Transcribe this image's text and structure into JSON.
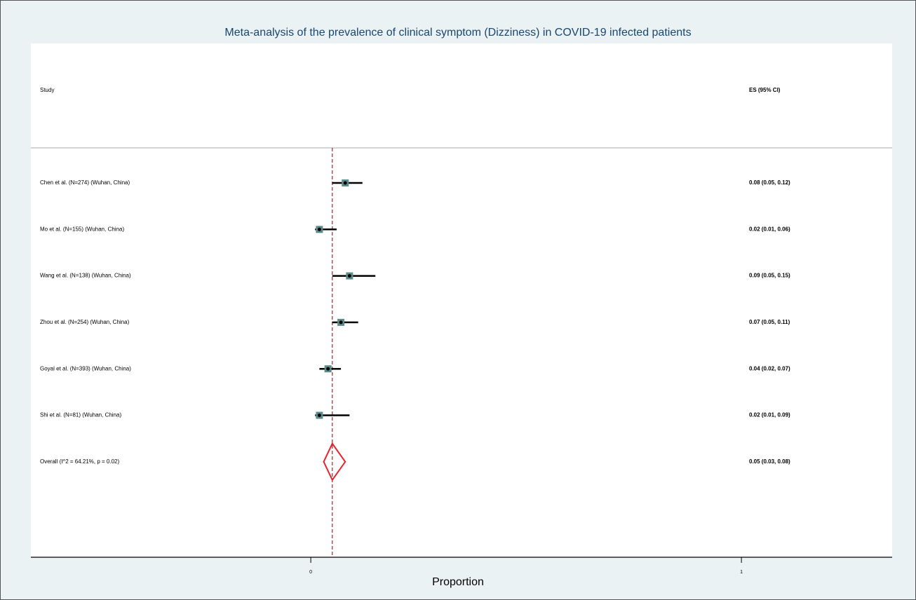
{
  "chart_data": {
    "type": "forest",
    "title": "Meta-analysis of the prevalence of clinical symptom (Dizziness) in COVID-19 infected patients",
    "study_header": "Study",
    "es_header": "ES (95% CI)",
    "xlabel": "Proportion",
    "xlim": [
      -0.65,
      1.35
    ],
    "xticks": [
      0,
      1
    ],
    "marker_color": "#5b8c8b",
    "ci_color": "#000000",
    "diamond_color": "#e8222a",
    "null_line_color": "#b22222",
    "studies": [
      {
        "name": "Chen et al. (N=274) (Wuhan, China)",
        "es": 0.08,
        "ci": [
          0.05,
          0.12
        ],
        "value_label": "0.08 (0.05, 0.12)"
      },
      {
        "name": "Mo et al. (N=155) (Wuhan, China)",
        "es": 0.02,
        "ci": [
          0.01,
          0.06
        ],
        "value_label": "0.02 (0.01, 0.06)"
      },
      {
        "name": "Wang et al. (N=138) (Wuhan, China)",
        "es": 0.09,
        "ci": [
          0.05,
          0.15
        ],
        "value_label": "0.09 (0.05, 0.15)"
      },
      {
        "name": "Zhou et al. (N=254) (Wuhan, China)",
        "es": 0.07,
        "ci": [
          0.05,
          0.11
        ],
        "value_label": "0.07 (0.05, 0.11)"
      },
      {
        "name": "Goyal et al. (N=393) (Wuhan, China)",
        "es": 0.04,
        "ci": [
          0.02,
          0.07
        ],
        "value_label": "0.04 (0.02, 0.07)"
      },
      {
        "name": "Shi et al. (N=81) (Wuhan, China)",
        "es": 0.02,
        "ci": [
          0.01,
          0.09
        ],
        "value_label": "0.02 (0.01, 0.09)"
      }
    ],
    "overall": {
      "name": "Overall  (I^2 = 64.21%, p = 0.02)",
      "es": 0.05,
      "ci": [
        0.03,
        0.08
      ],
      "value_label": "0.05 (0.03, 0.08)"
    }
  }
}
